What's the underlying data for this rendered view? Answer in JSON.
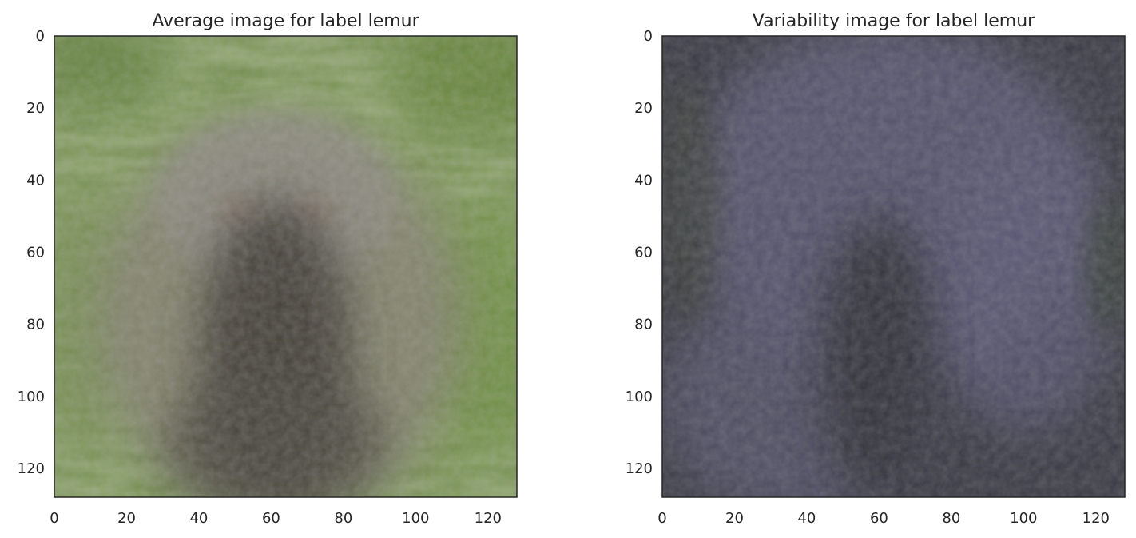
{
  "chart_data": [
    {
      "type": "image",
      "title": "Average image for label lemur",
      "xlim": [
        0,
        128
      ],
      "ylim": [
        128,
        0
      ],
      "xticks": [
        0,
        20,
        40,
        60,
        80,
        100,
        120
      ],
      "yticks": [
        0,
        20,
        40,
        60,
        80,
        100,
        120
      ],
      "tick_labels_x": [
        "0",
        "20",
        "40",
        "60",
        "80",
        "100",
        "120"
      ],
      "tick_labels_y": [
        "0",
        "20",
        "40",
        "60",
        "80",
        "100",
        "120"
      ],
      "image_content": "blurred average photo of a lemur: grey-brown fuzzy body centered, green grassy background",
      "colors": {
        "background": "#6f8a48",
        "subject": "#6e6a5e",
        "dark_core": "#3f3b35"
      }
    },
    {
      "type": "image",
      "title": "Variability image for label lemur",
      "xlim": [
        0,
        128
      ],
      "ylim": [
        128,
        0
      ],
      "xticks": [
        0,
        20,
        40,
        60,
        80,
        100,
        120
      ],
      "yticks": [
        0,
        20,
        40,
        60,
        80,
        100,
        120
      ],
      "tick_labels_x": [
        "0",
        "20",
        "40",
        "60",
        "80",
        "100",
        "120"
      ],
      "tick_labels_y": [
        "0",
        "20",
        "40",
        "60",
        "80",
        "100",
        "120"
      ],
      "image_content": "blurred standard-deviation image: purple-grey haze with darker vertical core",
      "colors": {
        "background": "#3a3a46",
        "haze": "#5b5870",
        "dark_core": "#2e2e34"
      }
    }
  ]
}
